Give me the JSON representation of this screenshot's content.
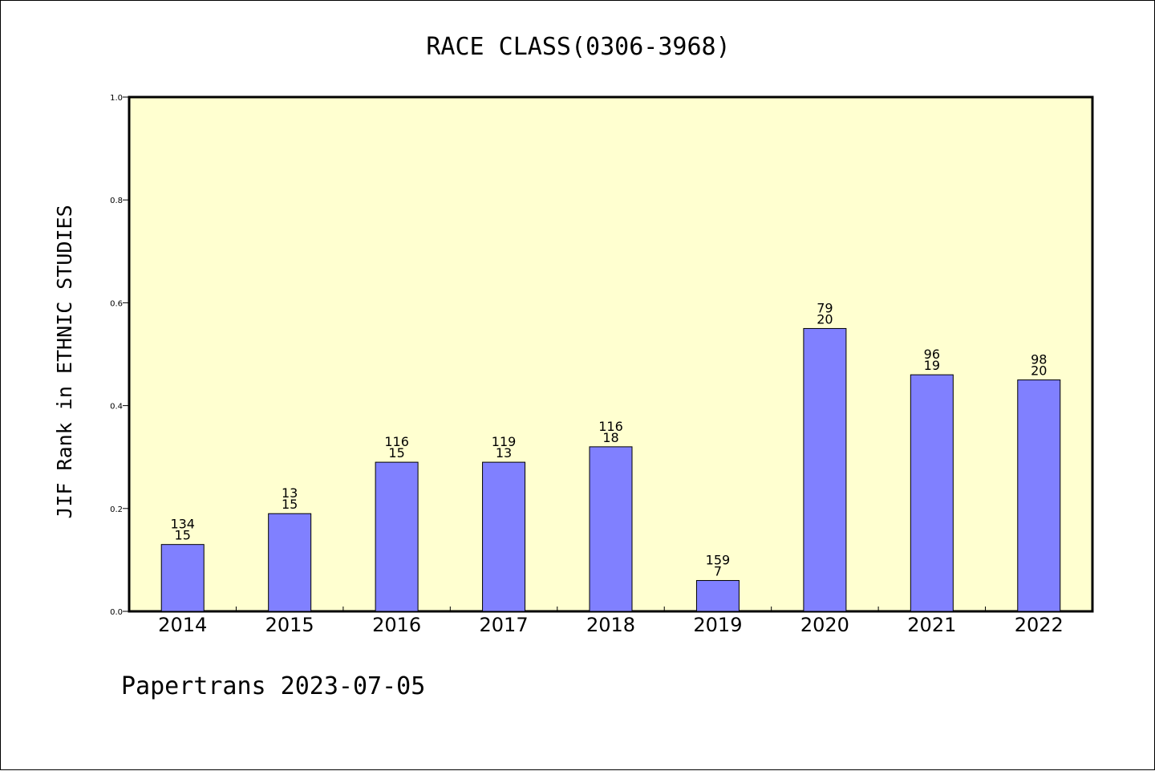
{
  "chart_data": {
    "type": "bar",
    "title": "RACE CLASS(0306-3968)",
    "xlabel": "",
    "ylabel": "JIF Rank in ETHNIC STUDIES",
    "categories": [
      "2014",
      "2015",
      "2016",
      "2017",
      "2018",
      "2019",
      "2020",
      "2021",
      "2022"
    ],
    "values": [
      0.13,
      0.19,
      0.29,
      0.29,
      0.32,
      0.06,
      0.55,
      0.46,
      0.45
    ],
    "data_labels": [
      [
        "134",
        "15"
      ],
      [
        "13",
        "15"
      ],
      [
        "116",
        "15"
      ],
      [
        "119",
        "13"
      ],
      [
        "116",
        "18"
      ],
      [
        "159",
        "7"
      ],
      [
        "79",
        "20"
      ],
      [
        "96",
        "19"
      ],
      [
        "98",
        "20"
      ]
    ],
    "ylim": [
      0,
      1.0
    ],
    "yticks": [
      "0.0",
      "0.2",
      "0.4",
      "0.6",
      "0.8",
      "1.0"
    ],
    "grid": false,
    "colors": {
      "plot_background": "#FFFFD0",
      "bar_fill": "#8080FF",
      "bar_stroke": "#000000"
    }
  },
  "footer": {
    "text": "Papertrans 2023-07-05"
  }
}
